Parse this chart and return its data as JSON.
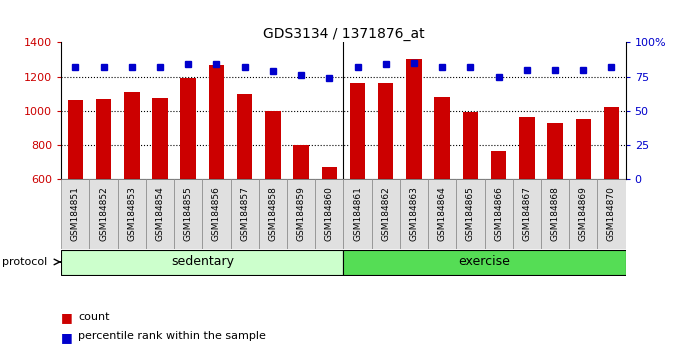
{
  "title": "GDS3134 / 1371876_at",
  "samples": [
    "GSM184851",
    "GSM184852",
    "GSM184853",
    "GSM184854",
    "GSM184855",
    "GSM184856",
    "GSM184857",
    "GSM184858",
    "GSM184859",
    "GSM184860",
    "GSM184861",
    "GSM184862",
    "GSM184863",
    "GSM184864",
    "GSM184865",
    "GSM184866",
    "GSM184867",
    "GSM184868",
    "GSM184869",
    "GSM184870"
  ],
  "counts": [
    1060,
    1070,
    1110,
    1072,
    1190,
    1270,
    1100,
    998,
    800,
    668,
    1165,
    1160,
    1305,
    1080,
    990,
    765,
    960,
    930,
    948,
    1020
  ],
  "pct_values": [
    82,
    82,
    82,
    82,
    84,
    84,
    82,
    79,
    76,
    74,
    82,
    84,
    85,
    82,
    82,
    75,
    80,
    80,
    80,
    82
  ],
  "sedentary_count": 10,
  "exercise_count": 10,
  "ylim_left": [
    600,
    1400
  ],
  "ylim_right": [
    0,
    100
  ],
  "yticks_left": [
    600,
    800,
    1000,
    1200,
    1400
  ],
  "yticks_right": [
    0,
    25,
    50,
    75,
    100
  ],
  "bar_color": "#cc0000",
  "dot_color": "#0000cc",
  "sedentary_color": "#ccffcc",
  "exercise_color": "#55dd55",
  "label_bg_color": "#e0e0e0",
  "protocol_label": "protocol",
  "sedentary_label": "sedentary",
  "exercise_label": "exercise",
  "legend_count_label": "count",
  "legend_pct_label": "percentile rank within the sample"
}
